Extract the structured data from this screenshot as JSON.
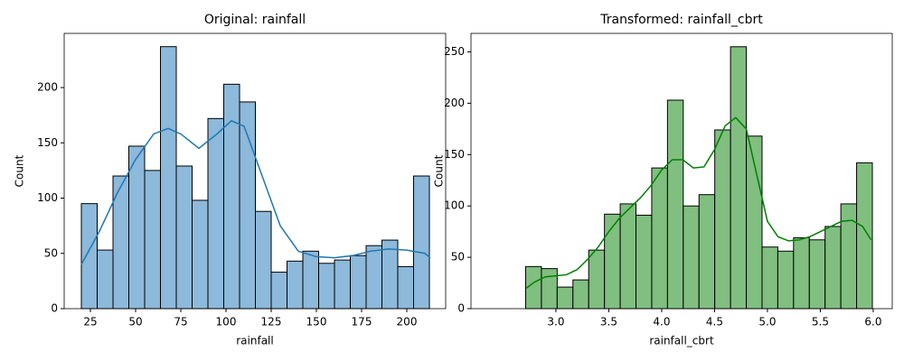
{
  "chart_data": [
    {
      "type": "histogram",
      "title": "Original: rainfall",
      "xlabel": "rainfall",
      "ylabel": "Count",
      "bins": [
        20,
        28.75,
        37.5,
        46.25,
        55,
        63.75,
        72.5,
        81.25,
        90,
        98.75,
        107.5,
        116.25,
        125,
        133.75,
        142.5,
        151.25,
        160,
        168.75,
        177.5,
        186.25,
        195,
        203.75,
        212.5
      ],
      "counts": [
        95,
        53,
        120,
        147,
        125,
        237,
        129,
        98,
        172,
        203,
        187,
        88,
        33,
        43,
        52,
        41,
        44,
        48,
        57,
        62,
        38,
        120
      ],
      "color": "#8db9da",
      "line_color": "#1f77b4",
      "kde": {
        "x": [
          20,
          30,
          40,
          50,
          60,
          68,
          75,
          85,
          95,
          103,
          110,
          120,
          130,
          140,
          150,
          160,
          170,
          180,
          190,
          200,
          210,
          213
        ],
        "y": [
          40,
          70,
          105,
          135,
          158,
          163,
          158,
          145,
          158,
          170,
          165,
          120,
          75,
          52,
          47,
          46,
          48,
          52,
          54,
          53,
          50,
          46
        ]
      },
      "xlim": [
        10.5,
        221.5
      ],
      "xticks": [
        25,
        50,
        75,
        100,
        125,
        150,
        175,
        200
      ],
      "ylim": [
        0,
        249
      ],
      "yticks": [
        0,
        50,
        100,
        150,
        200
      ]
    },
    {
      "type": "histogram",
      "title": "Transformed: rainfall_cbrt",
      "xlabel": "rainfall_cbrt",
      "ylabel": "Count",
      "bins": [
        2.714,
        2.863,
        3.012,
        3.161,
        3.31,
        3.459,
        3.608,
        3.757,
        3.906,
        4.055,
        4.204,
        4.353,
        4.502,
        4.651,
        4.8,
        4.949,
        5.098,
        5.247,
        5.396,
        5.545,
        5.694,
        5.843,
        5.992
      ],
      "counts": [
        41,
        39,
        21,
        28,
        57,
        92,
        102,
        91,
        137,
        203,
        100,
        111,
        174,
        255,
        168,
        60,
        56,
        69,
        67,
        80,
        102,
        142
      ],
      "color": "#80bf80",
      "line_color": "#008000",
      "kde": {
        "x": [
          2.72,
          2.8,
          2.9,
          3.0,
          3.1,
          3.2,
          3.3,
          3.4,
          3.5,
          3.6,
          3.7,
          3.8,
          3.9,
          4.0,
          4.1,
          4.2,
          4.3,
          4.4,
          4.5,
          4.6,
          4.7,
          4.8,
          4.9,
          5.0,
          5.1,
          5.2,
          5.3,
          5.4,
          5.5,
          5.6,
          5.7,
          5.8,
          5.9,
          5.98
        ],
        "y": [
          20,
          26,
          31,
          32,
          33,
          38,
          48,
          60,
          75,
          88,
          98,
          108,
          120,
          135,
          145,
          145,
          137,
          138,
          155,
          178,
          186,
          175,
          130,
          85,
          70,
          66,
          67,
          70,
          75,
          80,
          85,
          86,
          80,
          67
        ]
      },
      "xlim": [
        2.197,
        6.18
      ],
      "xticks": [
        {
          "value": 3,
          "label": "3.0"
        },
        3.5,
        {
          "value": 4,
          "label": "4.0"
        },
        4.5,
        {
          "value": 5,
          "label": "5.0"
        },
        5.5,
        {
          "value": 6,
          "label": "6.0"
        }
      ],
      "ylim": [
        0,
        268
      ],
      "yticks": [
        0,
        50,
        100,
        150,
        200,
        250
      ]
    }
  ]
}
